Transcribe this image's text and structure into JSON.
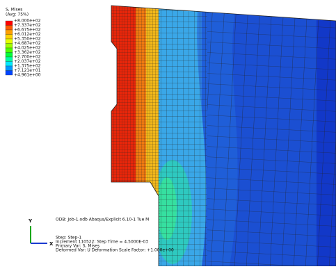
{
  "legend": {
    "title": "S, Mises",
    "subtitle": "(Avg: 75%)",
    "labels": [
      "+8.000e+02",
      "+7.337e+02",
      "+6.675e+02",
      "+6.012e+02",
      "+5.350e+02",
      "+4.687e+02",
      "+4.025e+02",
      "+3.362e+02",
      "+2.700e+02",
      "+2.037e+02",
      "+1.375e+02",
      "+7.121e+01",
      "+4.961e+00"
    ],
    "colors": [
      "#ff0000",
      "#ff5a00",
      "#ff9f00",
      "#ffd200",
      "#e4ff00",
      "#9eff00",
      "#4cff00",
      "#00ff3a",
      "#00ffa0",
      "#00e8ff",
      "#0099ff",
      "#0044ff"
    ]
  },
  "info": {
    "odb": "ODB: Job-1.odb    Abaqus/Explicit 6.10-1    Tue M",
    "step": "Step: Step-1",
    "increment": "Increment    110522: Step Time =    4.5000E-03",
    "primary": "Primary Var: S, Mises",
    "deformed": "Deformed Var: U   Deformation Scale Factor: +1.000e+00"
  },
  "triad": {
    "y": "Y",
    "x": "X"
  }
}
